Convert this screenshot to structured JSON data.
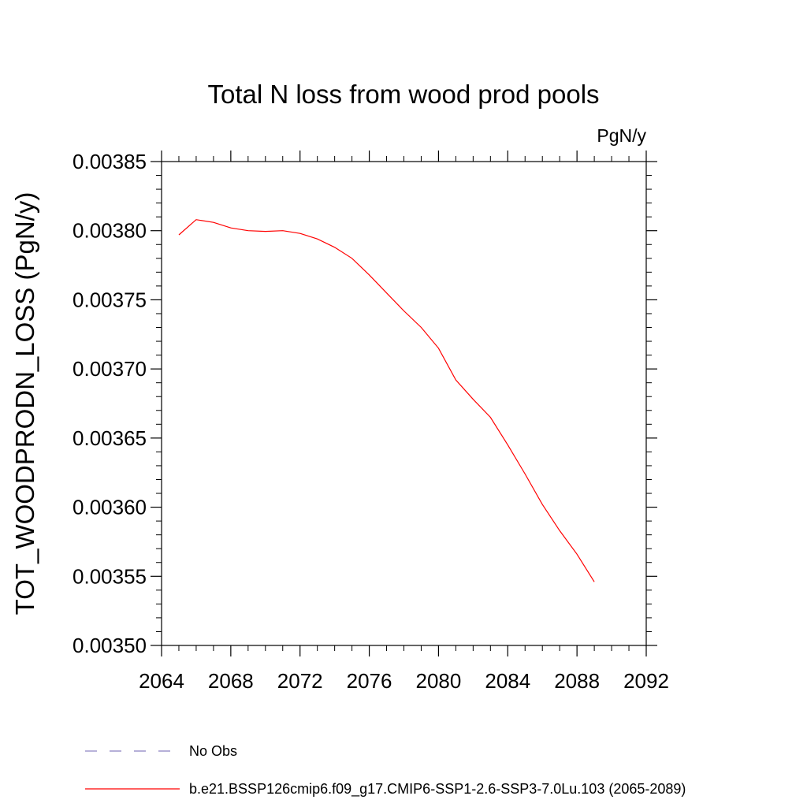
{
  "chart_data": {
    "type": "line",
    "title": "Total N loss from wood prod pools",
    "units_label": "PgN/y",
    "xlabel": "",
    "ylabel": "TOT_WOODPRODN_LOSS  (PgN/y)",
    "xlim": [
      2064,
      2092
    ],
    "ylim": [
      0.0035,
      0.00385
    ],
    "x_ticks": [
      "2064",
      "2068",
      "2072",
      "2076",
      "2080",
      "2084",
      "2088",
      "2092"
    ],
    "y_ticks": [
      "0.00385",
      "0.00380",
      "0.00375",
      "0.00370",
      "0.00365",
      "0.00360",
      "0.00355",
      "0.00350"
    ],
    "grid": false,
    "legend_position": "bottom",
    "series": [
      {
        "name": "b.e21.BSSP126cmip6.f09_g17.CMIP6-SSP1-2.6-SSP3-7.0Lu.103 (2065-2089)",
        "color": "#ff0000",
        "style": "solid",
        "x": [
          2065,
          2066,
          2067,
          2068,
          2069,
          2070,
          2071,
          2072,
          2073,
          2074,
          2075,
          2076,
          2077,
          2078,
          2079,
          2080,
          2081,
          2082,
          2083,
          2084,
          2085,
          2086,
          2087,
          2088,
          2089
        ],
        "y": [
          0.003797,
          0.003808,
          0.003806,
          0.003802,
          0.0038,
          0.0037995,
          0.0038,
          0.003798,
          0.003794,
          0.003788,
          0.00378,
          0.003768,
          0.003755,
          0.003742,
          0.00373,
          0.003715,
          0.003692,
          0.003678,
          0.003665,
          0.003645,
          0.003624,
          0.003602,
          0.003583,
          0.003566,
          0.003546
        ]
      }
    ],
    "legend": [
      {
        "label": "No Obs",
        "color": "#8a80c0",
        "style": "dashed"
      },
      {
        "label": "b.e21.BSSP126cmip6.f09_g17.CMIP6-SSP1-2.6-SSP3-7.0Lu.103 (2065-2089)",
        "color": "#ff0000",
        "style": "solid"
      }
    ]
  }
}
